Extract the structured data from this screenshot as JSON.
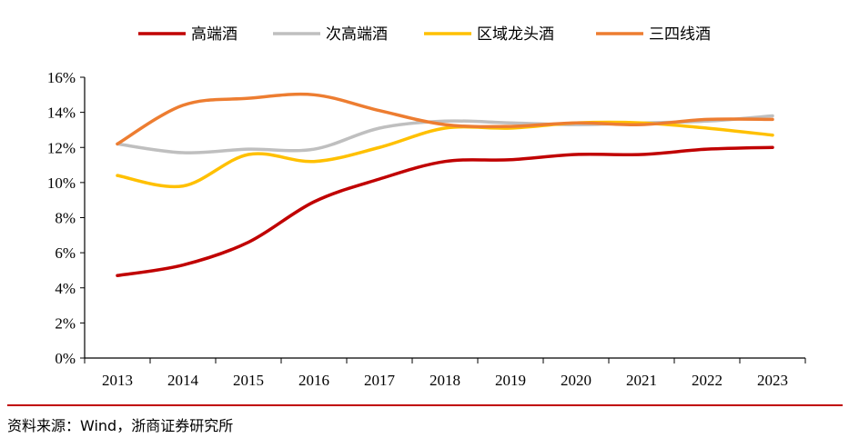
{
  "chart_data": {
    "type": "line",
    "title": "",
    "xlabel": "",
    "ylabel": "",
    "categories": [
      "2013",
      "2014",
      "2015",
      "2016",
      "2017",
      "2018",
      "2019",
      "2020",
      "2021",
      "2022",
      "2023"
    ],
    "ylim": [
      0,
      16
    ],
    "yticks": [
      0,
      2,
      4,
      6,
      8,
      10,
      12,
      14,
      16
    ],
    "ytick_labels": [
      "0%",
      "2%",
      "4%",
      "6%",
      "8%",
      "10%",
      "12%",
      "14%",
      "16%"
    ],
    "grid": false,
    "legend_position": "top",
    "series": [
      {
        "name": "高端酒",
        "color": "#c00000",
        "values": [
          4.7,
          5.3,
          6.6,
          8.9,
          10.2,
          11.2,
          11.3,
          11.6,
          11.6,
          11.9,
          12.0
        ]
      },
      {
        "name": "次高端酒",
        "color": "#bfbfbf",
        "values": [
          12.2,
          11.7,
          11.9,
          11.9,
          13.1,
          13.5,
          13.4,
          13.3,
          13.4,
          13.5,
          13.8
        ]
      },
      {
        "name": "区域龙头酒",
        "color": "#ffc000",
        "values": [
          10.4,
          9.8,
          11.6,
          11.2,
          12.0,
          13.1,
          13.1,
          13.4,
          13.4,
          13.1,
          12.7
        ]
      },
      {
        "name": "三四线酒",
        "color": "#ed7d31",
        "values": [
          12.2,
          14.4,
          14.8,
          15.0,
          14.1,
          13.3,
          13.2,
          13.4,
          13.3,
          13.6,
          13.6
        ]
      }
    ]
  },
  "source": "资料来源：Wind，浙商证券研究所"
}
